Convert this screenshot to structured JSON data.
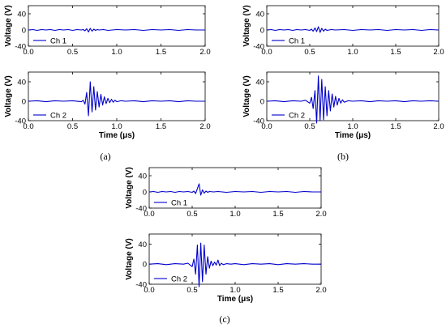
{
  "figure": {
    "captions": [
      "(a)",
      "(b)",
      "(c)"
    ]
  },
  "chart_data": [
    {
      "type": "line",
      "panel": "(a)",
      "channel": "top",
      "series": [
        {
          "name": "Ch 1",
          "color": "#0000cc",
          "x": [
            0,
            0.05,
            0.1,
            0.15,
            0.2,
            0.25,
            0.3,
            0.35,
            0.4,
            0.45,
            0.5,
            0.55,
            0.6,
            0.62,
            0.64,
            0.66,
            0.68,
            0.7,
            0.72,
            0.74,
            0.76,
            0.78,
            0.8,
            0.85,
            0.9,
            1.0,
            1.1,
            1.2,
            1.3,
            1.4,
            1.5,
            1.6,
            1.7,
            1.8,
            1.9,
            2.0
          ],
          "y": [
            0,
            1,
            -1,
            1,
            0,
            1,
            -1,
            1,
            0,
            1,
            -1,
            1,
            0,
            1,
            -2,
            3,
            -5,
            4,
            -3,
            2,
            -1,
            1,
            0,
            1,
            -1,
            1,
            0,
            1,
            -1,
            1,
            0,
            1,
            -1,
            1,
            0,
            0
          ]
        }
      ],
      "xlim": [
        0,
        2.0
      ],
      "ylim": [
        -40,
        60
      ],
      "xticks": [
        "0.0",
        "0.5",
        "1.0",
        "1.5",
        "2.0"
      ],
      "yticks": [
        "-40",
        "0",
        "40"
      ],
      "xlabel": "",
      "ylabel": "Voltage (V)",
      "legend": "bottom-left"
    },
    {
      "type": "line",
      "panel": "(a)",
      "channel": "bottom",
      "series": [
        {
          "name": "Ch 2",
          "color": "#0000cc",
          "x": [
            0,
            0.1,
            0.2,
            0.3,
            0.4,
            0.5,
            0.6,
            0.62,
            0.64,
            0.66,
            0.68,
            0.7,
            0.72,
            0.74,
            0.76,
            0.78,
            0.8,
            0.82,
            0.84,
            0.86,
            0.88,
            0.9,
            0.92,
            0.94,
            0.96,
            0.98,
            1.0,
            1.05,
            1.1,
            1.2,
            1.3,
            1.4,
            1.5,
            1.6,
            1.7,
            1.8,
            1.9,
            2.0
          ],
          "y": [
            0,
            1,
            -1,
            1,
            0,
            1,
            -1,
            2,
            -6,
            18,
            -30,
            40,
            -22,
            30,
            -18,
            20,
            -12,
            14,
            -8,
            9,
            -5,
            6,
            -3,
            4,
            -2,
            2,
            -1,
            1,
            0,
            1,
            -1,
            1,
            0,
            1,
            -1,
            1,
            0,
            0
          ]
        }
      ],
      "xlim": [
        0,
        2.0
      ],
      "ylim": [
        -40,
        60
      ],
      "xticks": [
        "0.0",
        "0.5",
        "1.0",
        "1.5",
        "2.0"
      ],
      "yticks": [
        "-40",
        "0",
        "40"
      ],
      "xlabel": "Time (μs)",
      "ylabel": "Voltage (V)",
      "legend": "bottom-left"
    },
    {
      "type": "line",
      "panel": "(b)",
      "channel": "top",
      "series": [
        {
          "name": "Ch 1",
          "color": "#0000cc",
          "x": [
            0,
            0.05,
            0.1,
            0.15,
            0.2,
            0.25,
            0.3,
            0.35,
            0.4,
            0.45,
            0.5,
            0.52,
            0.54,
            0.56,
            0.58,
            0.6,
            0.62,
            0.64,
            0.66,
            0.68,
            0.7,
            0.75,
            0.8,
            0.9,
            1.0,
            1.1,
            1.2,
            1.3,
            1.4,
            1.5,
            1.6,
            1.7,
            1.8,
            1.9,
            2.0
          ],
          "y": [
            0,
            1,
            -1,
            1,
            0,
            1,
            -1,
            1,
            0,
            1,
            -1,
            2,
            -3,
            5,
            -4,
            8,
            -6,
            4,
            -3,
            2,
            -1,
            1,
            0,
            1,
            -1,
            1,
            0,
            1,
            -1,
            1,
            0,
            1,
            -1,
            1,
            0
          ]
        }
      ],
      "xlim": [
        0,
        2.0
      ],
      "ylim": [
        -40,
        60
      ],
      "xticks": [
        "0.0",
        "0.5",
        "1.0",
        "1.5",
        "2.0"
      ],
      "yticks": [
        "-40",
        "0",
        "40"
      ],
      "xlabel": "",
      "ylabel": "Voltage (V)",
      "legend": "bottom-left"
    },
    {
      "type": "line",
      "panel": "(b)",
      "channel": "bottom",
      "series": [
        {
          "name": "Ch 2",
          "color": "#0000cc",
          "x": [
            0,
            0.1,
            0.2,
            0.3,
            0.4,
            0.45,
            0.5,
            0.52,
            0.54,
            0.56,
            0.58,
            0.6,
            0.62,
            0.64,
            0.66,
            0.68,
            0.7,
            0.72,
            0.74,
            0.76,
            0.78,
            0.8,
            0.82,
            0.84,
            0.86,
            0.88,
            0.9,
            0.95,
            1.0,
            1.1,
            1.2,
            1.3,
            1.4,
            1.5,
            1.6,
            1.7,
            1.8,
            1.9,
            2.0
          ],
          "y": [
            0,
            1,
            -1,
            1,
            0,
            2,
            -4,
            8,
            -15,
            22,
            -45,
            52,
            -40,
            45,
            -38,
            30,
            -30,
            22,
            -20,
            15,
            -12,
            10,
            -8,
            6,
            -4,
            3,
            -2,
            1,
            0,
            1,
            -1,
            1,
            0,
            1,
            -1,
            1,
            0,
            1,
            0
          ]
        }
      ],
      "xlim": [
        0,
        2.0
      ],
      "ylim": [
        -40,
        60
      ],
      "xticks": [
        "0.0",
        "0.5",
        "1.0",
        "1.5",
        "2.0"
      ],
      "yticks": [
        "-40",
        "0",
        "40"
      ],
      "xlabel": "Time (μs)",
      "ylabel": "Voltage (V)",
      "legend": "bottom-left"
    },
    {
      "type": "line",
      "panel": "(c)",
      "channel": "top",
      "series": [
        {
          "name": "Ch 1",
          "color": "#0000cc",
          "x": [
            0,
            0.05,
            0.1,
            0.15,
            0.2,
            0.25,
            0.3,
            0.35,
            0.4,
            0.45,
            0.5,
            0.52,
            0.54,
            0.56,
            0.58,
            0.6,
            0.62,
            0.64,
            0.66,
            0.68,
            0.7,
            0.75,
            0.8,
            0.9,
            1.0,
            1.1,
            1.2,
            1.3,
            1.4,
            1.5,
            1.6,
            1.7,
            1.8,
            1.9,
            2.0
          ],
          "y": [
            0,
            1,
            -1,
            1,
            0,
            1,
            -1,
            1,
            0,
            1,
            -1,
            2,
            -4,
            8,
            20,
            -8,
            5,
            -3,
            2,
            -1,
            1,
            0,
            1,
            -1,
            1,
            0,
            1,
            -1,
            1,
            0,
            1,
            -1,
            1,
            0,
            0
          ]
        }
      ],
      "xlim": [
        0,
        2.0
      ],
      "ylim": [
        -40,
        60
      ],
      "xticks": [
        "0.0",
        "0.5",
        "1.0",
        "1.5",
        "2.0"
      ],
      "yticks": [
        "-40",
        "0",
        "40"
      ],
      "xlabel": "",
      "ylabel": "Voltage (V)",
      "legend": "bottom-left"
    },
    {
      "type": "line",
      "panel": "(c)",
      "channel": "bottom",
      "series": [
        {
          "name": "Ch 2",
          "color": "#0000cc",
          "x": [
            0,
            0.1,
            0.2,
            0.3,
            0.4,
            0.45,
            0.5,
            0.52,
            0.54,
            0.56,
            0.58,
            0.6,
            0.62,
            0.64,
            0.66,
            0.68,
            0.7,
            0.72,
            0.74,
            0.76,
            0.78,
            0.8,
            0.82,
            0.84,
            0.86,
            0.9,
            0.95,
            1.0,
            1.1,
            1.2,
            1.3,
            1.4,
            1.5,
            1.6,
            1.7,
            1.8,
            1.9,
            2.0
          ],
          "y": [
            0,
            1,
            -1,
            1,
            0,
            2,
            -5,
            10,
            -20,
            38,
            -45,
            42,
            -35,
            38,
            -20,
            15,
            -8,
            6,
            -3,
            4,
            -2,
            8,
            -3,
            2,
            -1,
            1,
            0,
            1,
            -1,
            1,
            0,
            1,
            -1,
            1,
            0,
            1,
            0,
            0
          ]
        }
      ],
      "xlim": [
        0,
        2.0
      ],
      "ylim": [
        -40,
        60
      ],
      "xticks": [
        "0.0",
        "0.5",
        "1.0",
        "1.5",
        "2.0"
      ],
      "yticks": [
        "-40",
        "0",
        "40"
      ],
      "xlabel": "Time (μs)",
      "ylabel": "Voltage (V)",
      "legend": "bottom-left"
    }
  ]
}
